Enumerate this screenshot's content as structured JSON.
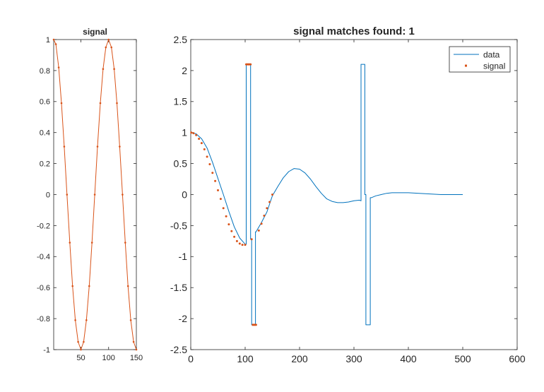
{
  "colors": {
    "data": "#0072BD",
    "signal": "#D95319",
    "axis": "#262626"
  },
  "chart_data": [
    {
      "type": "line",
      "title": "signal",
      "xlabel": "",
      "ylabel": "",
      "xlim": [
        1,
        150
      ],
      "ylim": [
        -1,
        1
      ],
      "xticks": [
        50,
        100,
        150
      ],
      "yticks": [
        -1,
        -0.8,
        -0.6,
        -0.4,
        -0.2,
        0,
        0.2,
        0.4,
        0.6,
        0.8,
        1
      ],
      "xtick_labels": [
        "50",
        "100",
        "150"
      ],
      "ytick_labels": [
        "-1",
        "-0.8",
        "-0.6",
        "-0.4",
        "-0.2",
        "0",
        "0.2",
        "0.4",
        "0.6",
        "0.8",
        "1"
      ],
      "grid": false,
      "series": [
        {
          "name": "",
          "marker": "dot",
          "line": "solid",
          "color": "#D95319",
          "x": [
            1,
            5,
            10,
            15,
            20,
            25,
            30,
            35,
            40,
            45,
            50,
            55,
            60,
            65,
            70,
            75,
            80,
            85,
            90,
            95,
            100,
            105,
            110,
            115,
            120,
            125,
            130,
            135,
            140,
            145,
            150
          ],
          "y": [
            1,
            0.97,
            0.82,
            0.59,
            0.31,
            0,
            -0.31,
            -0.59,
            -0.81,
            -0.95,
            -1,
            -0.95,
            -0.81,
            -0.59,
            -0.31,
            0,
            0.31,
            0.59,
            0.81,
            0.95,
            1,
            0.95,
            0.81,
            0.59,
            0.31,
            0,
            -0.31,
            -0.59,
            -0.81,
            -0.95,
            -1
          ]
        }
      ]
    },
    {
      "type": "line",
      "title": "signal matches found: 1",
      "xlabel": "",
      "ylabel": "",
      "xlim": [
        0,
        600
      ],
      "ylim": [
        -2.5,
        2.5
      ],
      "xticks": [
        0,
        100,
        200,
        300,
        400,
        500,
        600
      ],
      "yticks": [
        -2.5,
        -2,
        -1.5,
        -1,
        -0.5,
        0,
        0.5,
        1,
        1.5,
        2,
        2.5
      ],
      "xtick_labels": [
        "0",
        "100",
        "200",
        "300",
        "400",
        "500",
        "600"
      ],
      "ytick_labels": [
        "-2.5",
        "-2",
        "-1.5",
        "-1",
        "-0.5",
        "0",
        "0.5",
        "1",
        "1.5",
        "2",
        "2.5"
      ],
      "grid": false,
      "legend": {
        "location": "top-right",
        "entries": [
          "data",
          "signal"
        ]
      },
      "series": [
        {
          "name": "data",
          "line": "solid",
          "color": "#0072BD",
          "x": [
            1,
            10,
            20,
            30,
            40,
            50,
            60,
            70,
            80,
            90,
            100,
            102,
            102,
            110,
            110,
            112,
            112,
            119,
            119,
            120,
            120,
            130,
            140,
            150,
            160,
            170,
            180,
            190,
            200,
            210,
            220,
            230,
            240,
            250,
            260,
            270,
            280,
            290,
            300,
            310,
            313,
            313,
            320,
            320,
            322,
            322,
            330,
            330,
            332,
            340,
            350,
            360,
            370,
            380,
            390,
            400,
            420,
            440,
            460,
            480,
            500
          ],
          "y": [
            1,
            0.98,
            0.9,
            0.75,
            0.52,
            0.26,
            0.0,
            -0.27,
            -0.52,
            -0.7,
            -0.8,
            -0.8,
            2.1,
            2.1,
            -0.72,
            -0.72,
            -2.1,
            -2.1,
            -0.6,
            -0.6,
            -0.6,
            -0.45,
            -0.28,
            -0.02,
            0.13,
            0.27,
            0.37,
            0.42,
            0.41,
            0.35,
            0.25,
            0.13,
            0.02,
            -0.07,
            -0.11,
            -0.13,
            -0.13,
            -0.12,
            -0.1,
            -0.09,
            -0.1,
            2.1,
            2.1,
            0.0,
            0.0,
            -2.1,
            -2.1,
            -0.05,
            -0.05,
            -0.02,
            0.0,
            0.02,
            0.03,
            0.03,
            0.03,
            0.03,
            0.02,
            0.01,
            0.0,
            0.0,
            0.0
          ]
        },
        {
          "name": "signal",
          "marker": "dot",
          "line": "none",
          "color": "#D95319",
          "x": [
            1,
            5,
            10,
            15,
            20,
            25,
            30,
            35,
            40,
            45,
            50,
            55,
            60,
            65,
            70,
            75,
            80,
            85,
            90,
            95,
            100,
            102,
            104,
            106,
            108,
            110,
            112,
            114,
            116,
            118,
            120,
            125,
            130,
            135,
            140,
            145,
            150
          ],
          "y": [
            1,
            0.99,
            0.96,
            0.9,
            0.83,
            0.73,
            0.61,
            0.49,
            0.35,
            0.22,
            0.07,
            -0.07,
            -0.22,
            -0.35,
            -0.48,
            -0.59,
            -0.68,
            -0.75,
            -0.79,
            -0.81,
            -0.81,
            2.1,
            2.1,
            2.1,
            2.1,
            2.1,
            -0.72,
            -2.1,
            -2.1,
            -2.1,
            -2.1,
            -0.58,
            -0.47,
            -0.34,
            -0.22,
            -0.12,
            0.0
          ]
        }
      ]
    }
  ]
}
